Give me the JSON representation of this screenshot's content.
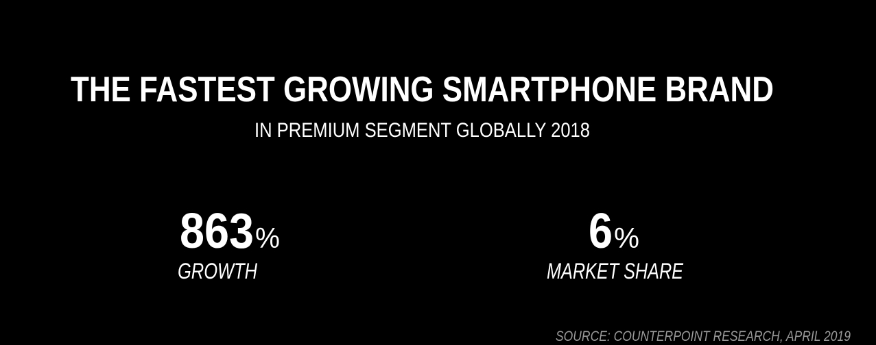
{
  "header": {
    "title": "THE FASTEST GROWING SMARTPHONE BRAND",
    "subtitle": "IN PREMIUM SEGMENT GLOBALLY 2018"
  },
  "stats": [
    {
      "value": 863,
      "unit": "%",
      "label": "GROWTH"
    },
    {
      "value": 6,
      "unit": "%",
      "label": "MARKET SHARE"
    }
  ],
  "footer": {
    "source": "SOURCE: COUNTERPOINT RESEARCH, APRIL 2019"
  }
}
